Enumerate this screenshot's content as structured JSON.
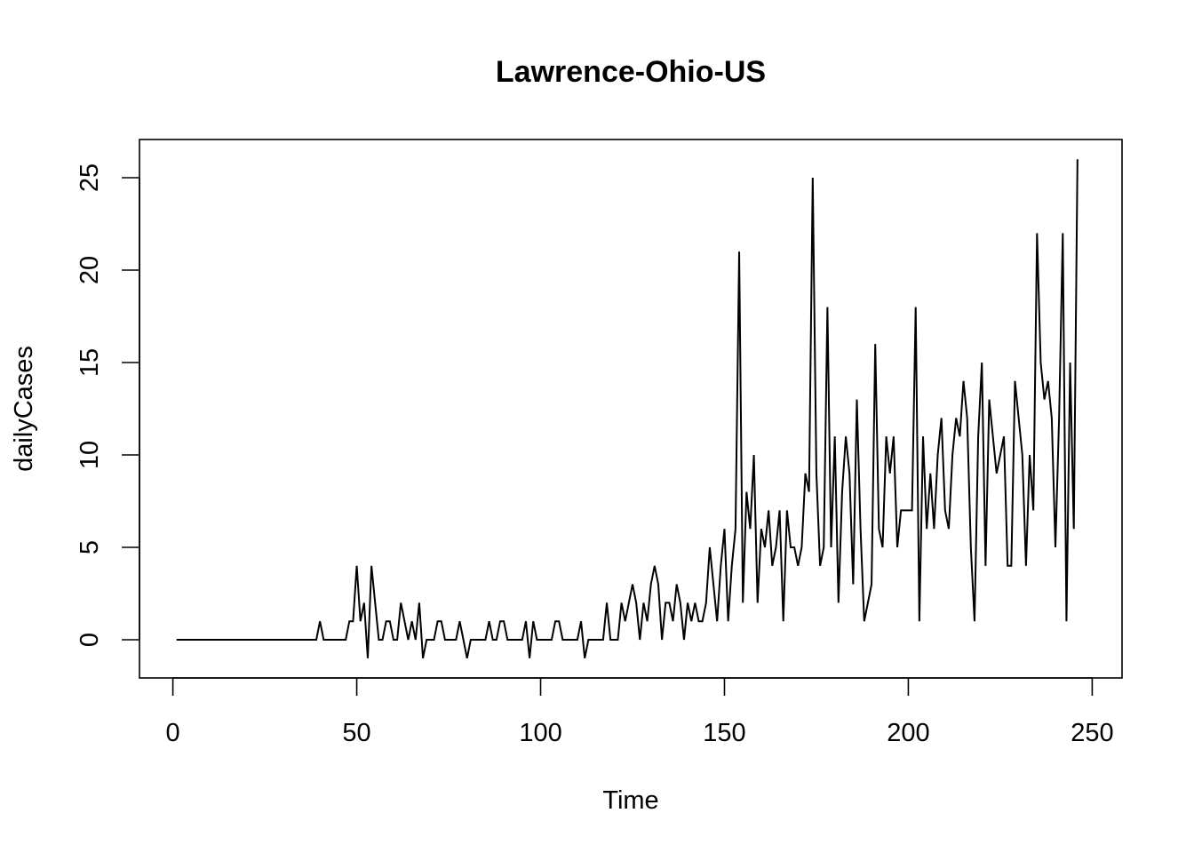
{
  "chart_data": {
    "type": "line",
    "title": "Lawrence-Ohio-US",
    "xlabel": "Time",
    "ylabel": "dailyCases",
    "xlim": [
      0,
      250
    ],
    "ylim": [
      0,
      25
    ],
    "x_ticks": [
      "0",
      "50",
      "100",
      "150",
      "200",
      "250"
    ],
    "y_ticks": [
      "0",
      "5",
      "10",
      "15",
      "20",
      "25"
    ],
    "grid": false,
    "line_color": "#000000",
    "series": [
      {
        "values": [
          0,
          0,
          0,
          0,
          0,
          0,
          0,
          0,
          0,
          0,
          0,
          0,
          0,
          0,
          0,
          0,
          0,
          0,
          0,
          0,
          0,
          0,
          0,
          0,
          0,
          0,
          0,
          0,
          0,
          0,
          0,
          0,
          0,
          0,
          0,
          0,
          0,
          0,
          0,
          1,
          0,
          0,
          0,
          0,
          0,
          0,
          0,
          1,
          1,
          4,
          1,
          2,
          -1,
          4,
          2,
          0,
          0,
          1,
          1,
          0,
          0,
          2,
          1,
          0,
          1,
          0,
          2,
          -1,
          0,
          0,
          0,
          1,
          1,
          0,
          0,
          0,
          0,
          1,
          0,
          -1,
          0,
          0,
          0,
          0,
          0,
          1,
          0,
          0,
          1,
          1,
          0,
          0,
          0,
          0,
          0,
          1,
          -1,
          1,
          0,
          0,
          0,
          0,
          0,
          1,
          1,
          0,
          0,
          0,
          0,
          0,
          1,
          -1,
          0,
          0,
          0,
          0,
          0,
          2,
          0,
          0,
          0,
          2,
          1,
          2,
          3,
          2,
          0,
          2,
          1,
          3,
          4,
          3,
          0,
          2,
          2,
          1,
          3,
          2,
          0,
          2,
          1,
          2,
          1,
          1,
          2,
          5,
          3,
          1,
          4,
          6,
          1,
          4,
          6,
          21,
          2,
          8,
          6,
          10,
          2,
          6,
          5,
          7,
          4,
          5,
          7,
          1,
          7,
          5,
          5,
          4,
          5,
          9,
          8,
          25,
          9,
          4,
          5,
          18,
          5,
          11,
          2,
          8,
          11,
          9,
          3,
          13,
          6,
          1,
          2,
          3,
          16,
          6,
          5,
          11,
          9,
          11,
          5,
          7,
          7,
          7,
          7,
          18,
          1,
          11,
          6,
          9,
          6,
          10,
          12,
          7,
          6,
          10,
          12,
          11,
          14,
          12,
          5,
          1,
          11,
          15,
          4,
          13,
          11,
          9,
          10,
          11,
          4,
          4,
          14,
          12,
          10,
          4,
          10,
          7,
          22,
          15,
          13,
          14,
          12,
          5,
          12,
          22,
          1,
          15,
          6,
          26
        ]
      }
    ]
  }
}
